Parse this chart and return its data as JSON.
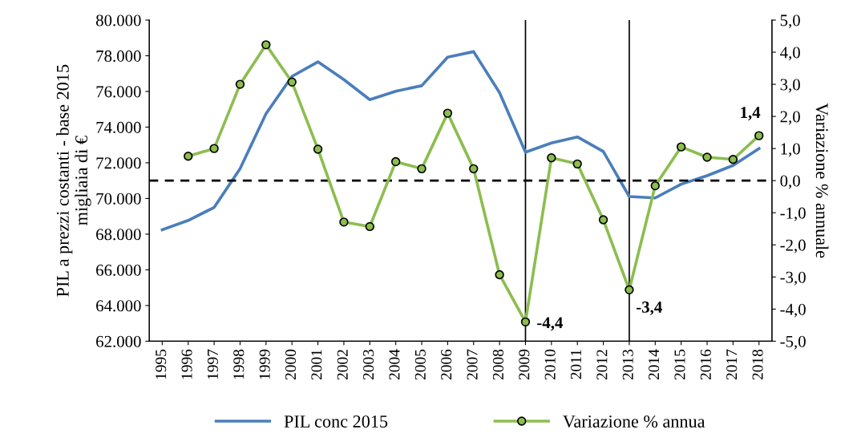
{
  "chart_data": {
    "type": "line",
    "ylabel": "PIL a prezzi costanti - base 2015\nmigliaia di €",
    "y2label": "Variazione % annuale",
    "categories": [
      "1995",
      "1996",
      "1997",
      "1998",
      "1999",
      "2000",
      "2001",
      "2002",
      "2003",
      "2004",
      "2005",
      "2006",
      "2007",
      "2008",
      "2009",
      "2010",
      "2011",
      "2012",
      "2013",
      "2014",
      "2015",
      "2016",
      "2017",
      "2018"
    ],
    "series": [
      {
        "name": "PIL conc 2015",
        "color": "#4a7ebb",
        "values": [
          68250,
          68770,
          69500,
          71670,
          74750,
          76840,
          77660,
          76660,
          75540,
          76010,
          76320,
          77920,
          78230,
          75930,
          72590,
          73110,
          73450,
          72630,
          70110,
          70030,
          70800,
          71280,
          71850,
          72800
        ]
      },
      {
        "name": "Variazione % annua",
        "color": "#8cbd4f",
        "axis": "y2",
        "marker": "circle",
        "values": [
          null,
          0.76,
          1.0,
          3.0,
          4.23,
          3.07,
          0.98,
          -1.29,
          -1.43,
          0.59,
          0.37,
          2.1,
          0.37,
          -2.93,
          -4.4,
          0.71,
          0.52,
          -1.22,
          -3.4,
          -0.16,
          1.05,
          0.73,
          0.66,
          1.4
        ],
        "value_labels": [
          null,
          null,
          null,
          null,
          null,
          null,
          null,
          null,
          null,
          null,
          null,
          null,
          null,
          null,
          "-4,4",
          null,
          null,
          null,
          "-3,4",
          null,
          null,
          null,
          null,
          "1,4"
        ]
      }
    ],
    "ylim": [
      62000,
      80000
    ],
    "yticks": [
      {
        "value": 62000,
        "label": "62.000"
      },
      {
        "value": 64000,
        "label": "64.000"
      },
      {
        "value": 66000,
        "label": "66.000"
      },
      {
        "value": 68000,
        "label": "68.000"
      },
      {
        "value": 70000,
        "label": "70.000"
      },
      {
        "value": 72000,
        "label": "72.000"
      },
      {
        "value": 74000,
        "label": "74.000"
      },
      {
        "value": 76000,
        "label": "76.000"
      },
      {
        "value": 78000,
        "label": "78.000"
      },
      {
        "value": 80000,
        "label": "80.000"
      }
    ],
    "y2lim": [
      -5,
      5
    ],
    "y2ticks": [
      {
        "value": -5,
        "label": "-5,0"
      },
      {
        "value": -4,
        "label": "-4,0"
      },
      {
        "value": -3,
        "label": "-3,0"
      },
      {
        "value": -2,
        "label": "-2,0"
      },
      {
        "value": -1,
        "label": "-1,0"
      },
      {
        "value": 0,
        "label": "0,0"
      },
      {
        "value": 1,
        "label": "1,0"
      },
      {
        "value": 2,
        "label": "2,0"
      },
      {
        "value": 3,
        "label": "3,0"
      },
      {
        "value": 4,
        "label": "4,0"
      },
      {
        "value": 5,
        "label": "5,0"
      }
    ],
    "ref_lines": [
      {
        "axis": "y2",
        "value": 0,
        "color": "#000000",
        "line_style": "dashed"
      },
      {
        "axis": "x",
        "value": "2009",
        "color": "#000000",
        "line_style": "solid"
      },
      {
        "axis": "x",
        "value": "2013",
        "color": "#000000",
        "line_style": "solid"
      }
    ],
    "grid": false,
    "legend": "bottom"
  }
}
